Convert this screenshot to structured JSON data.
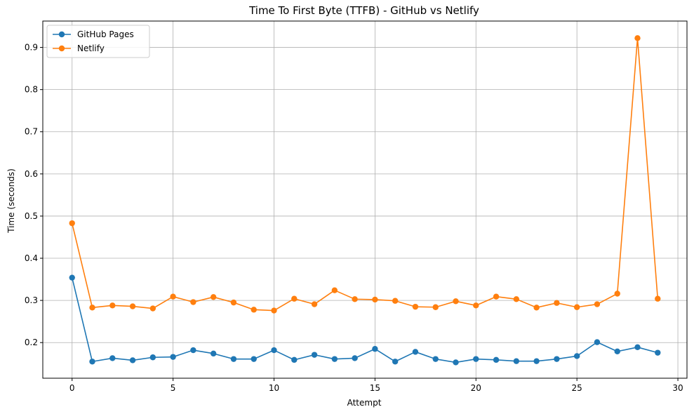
{
  "chart_data": {
    "type": "line",
    "title": "Time To First Byte (TTFB) - GitHub vs Netlify",
    "xlabel": "Attempt",
    "ylabel": "Time (seconds)",
    "xlim": [
      -1.45,
      30.45
    ],
    "ylim": [
      0.1155,
      0.9625
    ],
    "xticks": [
      0,
      5,
      10,
      15,
      20,
      25,
      30
    ],
    "yticks": [
      0.2,
      0.3,
      0.4,
      0.5,
      0.6,
      0.7,
      0.8,
      0.9
    ],
    "grid": true,
    "legend_position": "top-left",
    "x": [
      0,
      1,
      2,
      3,
      4,
      5,
      6,
      7,
      8,
      9,
      10,
      11,
      12,
      13,
      14,
      15,
      16,
      17,
      18,
      19,
      20,
      21,
      22,
      23,
      24,
      25,
      26,
      27,
      28,
      29
    ],
    "series": [
      {
        "name": "GitHub Pages",
        "color": "#1f77b4",
        "values": [
          0.354,
          0.155,
          0.163,
          0.158,
          0.165,
          0.166,
          0.182,
          0.174,
          0.161,
          0.161,
          0.182,
          0.159,
          0.171,
          0.161,
          0.163,
          0.185,
          0.155,
          0.178,
          0.161,
          0.153,
          0.161,
          0.159,
          0.156,
          0.156,
          0.161,
          0.168,
          0.201,
          0.179,
          0.189,
          0.176
        ]
      },
      {
        "name": "Netlify",
        "color": "#ff7f0e",
        "values": [
          0.483,
          0.283,
          0.288,
          0.286,
          0.281,
          0.309,
          0.296,
          0.308,
          0.295,
          0.278,
          0.276,
          0.304,
          0.291,
          0.324,
          0.303,
          0.302,
          0.299,
          0.285,
          0.284,
          0.298,
          0.288,
          0.309,
          0.303,
          0.283,
          0.294,
          0.284,
          0.291,
          0.316,
          0.922,
          0.304
        ]
      }
    ]
  }
}
